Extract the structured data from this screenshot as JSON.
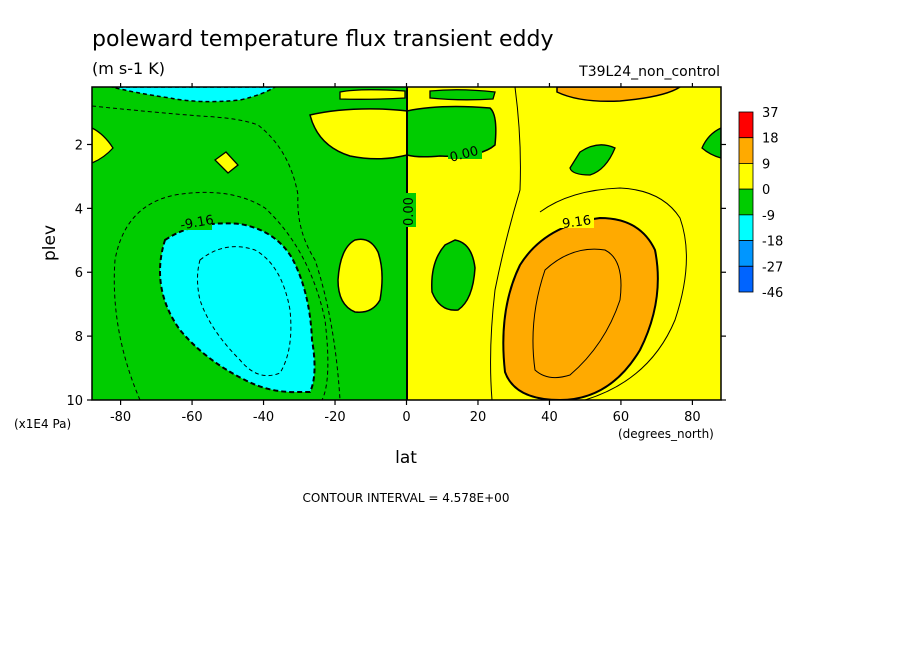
{
  "chart_data": {
    "type": "heatmap",
    "subtype": "filled-contour",
    "title": "poleward temperature flux transient eddy",
    "units": "(m s-1 K)",
    "dataset": "T39L24_non_control",
    "xlabel": "lat",
    "xunits": "(degrees_north)",
    "ylabel": "plev",
    "yunits": "(x1E4 Pa)",
    "xlim": [
      -88,
      88
    ],
    "ylim": [
      10,
      0.2
    ],
    "y_reversed": true,
    "xticks": [
      "-80",
      "-60",
      "-40",
      "-20",
      "0",
      "20",
      "40",
      "60",
      "80"
    ],
    "yticks": [
      "2",
      "4",
      "6",
      "8",
      "10"
    ],
    "contour_interval_text": "CONTOUR INTERVAL = 4.578E+00",
    "contour_labels": [
      "-9.16",
      "0.00",
      "0.00",
      "9.16"
    ],
    "colorbar": {
      "labels": [
        "37",
        "18",
        "9",
        "0",
        "-9",
        "-18",
        "-27",
        "-46"
      ],
      "bounds": [
        -46,
        -27,
        -18,
        -9,
        0,
        9,
        18,
        37
      ],
      "colors": [
        "#0064ff",
        "#0096ff",
        "#00ffff",
        "#00cc00",
        "#ffff00",
        "#ffaa00",
        "#ff0000"
      ]
    },
    "field": {
      "description_of_fill": "values between colorbar bounds",
      "regions": [
        {
          "name": "southern-hemisphere-background",
          "level": "-9 to 0"
        },
        {
          "name": "northern-hemisphere-background",
          "level": "0 to 9"
        },
        {
          "name": "southern-midlatitude-minimum",
          "level": "-18 to -9",
          "center": [
            -48,
            6.8
          ]
        },
        {
          "name": "northern-midlatitude-maximum",
          "level": "9 to 18",
          "center": [
            45,
            7.5
          ]
        },
        {
          "name": "southern-upper-negative-cell",
          "level": "-18 to -9",
          "center": [
            -65,
            0.25
          ]
        },
        {
          "name": "northern-upper-positive-cell",
          "level": "9 to 18",
          "center": [
            55,
            0.25
          ]
        }
      ]
    }
  }
}
